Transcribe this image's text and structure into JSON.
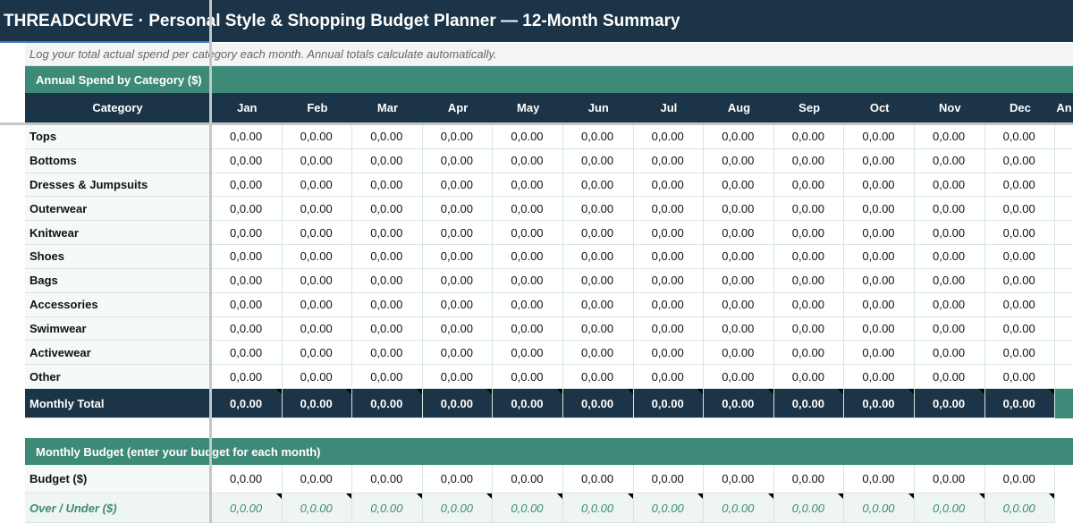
{
  "header": {
    "title": "THREADCURVE · Personal Style & Shopping Budget Planner — 12-Month Summary",
    "note": "Log your total actual spend per category each month. Annual totals calculate automatically."
  },
  "spend": {
    "title": "Annual Spend by Category ($)",
    "columns": [
      "Category",
      "Jan",
      "Feb",
      "Mar",
      "Apr",
      "May",
      "Jun",
      "Jul",
      "Aug",
      "Sep",
      "Oct",
      "Nov",
      "Dec",
      "An"
    ],
    "rows": [
      {
        "label": "Tops",
        "values": [
          "0,0.00",
          "0,0.00",
          "0,0.00",
          "0,0.00",
          "0,0.00",
          "0,0.00",
          "0,0.00",
          "0,0.00",
          "0,0.00",
          "0,0.00",
          "0,0.00",
          "0,0.00"
        ]
      },
      {
        "label": "Bottoms",
        "values": [
          "0,0.00",
          "0,0.00",
          "0,0.00",
          "0,0.00",
          "0,0.00",
          "0,0.00",
          "0,0.00",
          "0,0.00",
          "0,0.00",
          "0,0.00",
          "0,0.00",
          "0,0.00"
        ]
      },
      {
        "label": "Dresses & Jumpsuits",
        "values": [
          "0,0.00",
          "0,0.00",
          "0,0.00",
          "0,0.00",
          "0,0.00",
          "0,0.00",
          "0,0.00",
          "0,0.00",
          "0,0.00",
          "0,0.00",
          "0,0.00",
          "0,0.00"
        ]
      },
      {
        "label": "Outerwear",
        "values": [
          "0,0.00",
          "0,0.00",
          "0,0.00",
          "0,0.00",
          "0,0.00",
          "0,0.00",
          "0,0.00",
          "0,0.00",
          "0,0.00",
          "0,0.00",
          "0,0.00",
          "0,0.00"
        ]
      },
      {
        "label": "Knitwear",
        "values": [
          "0,0.00",
          "0,0.00",
          "0,0.00",
          "0,0.00",
          "0,0.00",
          "0,0.00",
          "0,0.00",
          "0,0.00",
          "0,0.00",
          "0,0.00",
          "0,0.00",
          "0,0.00"
        ]
      },
      {
        "label": "Shoes",
        "values": [
          "0,0.00",
          "0,0.00",
          "0,0.00",
          "0,0.00",
          "0,0.00",
          "0,0.00",
          "0,0.00",
          "0,0.00",
          "0,0.00",
          "0,0.00",
          "0,0.00",
          "0,0.00"
        ]
      },
      {
        "label": "Bags",
        "values": [
          "0,0.00",
          "0,0.00",
          "0,0.00",
          "0,0.00",
          "0,0.00",
          "0,0.00",
          "0,0.00",
          "0,0.00",
          "0,0.00",
          "0,0.00",
          "0,0.00",
          "0,0.00"
        ]
      },
      {
        "label": "Accessories",
        "values": [
          "0,0.00",
          "0,0.00",
          "0,0.00",
          "0,0.00",
          "0,0.00",
          "0,0.00",
          "0,0.00",
          "0,0.00",
          "0,0.00",
          "0,0.00",
          "0,0.00",
          "0,0.00"
        ]
      },
      {
        "label": "Swimwear",
        "values": [
          "0,0.00",
          "0,0.00",
          "0,0.00",
          "0,0.00",
          "0,0.00",
          "0,0.00",
          "0,0.00",
          "0,0.00",
          "0,0.00",
          "0,0.00",
          "0,0.00",
          "0,0.00"
        ]
      },
      {
        "label": "Activewear",
        "values": [
          "0,0.00",
          "0,0.00",
          "0,0.00",
          "0,0.00",
          "0,0.00",
          "0,0.00",
          "0,0.00",
          "0,0.00",
          "0,0.00",
          "0,0.00",
          "0,0.00",
          "0,0.00"
        ]
      },
      {
        "label": "Other",
        "values": [
          "0,0.00",
          "0,0.00",
          "0,0.00",
          "0,0.00",
          "0,0.00",
          "0,0.00",
          "0,0.00",
          "0,0.00",
          "0,0.00",
          "0,0.00",
          "0,0.00",
          "0,0.00"
        ]
      }
    ],
    "total": {
      "label": "Monthly Total",
      "values": [
        "0,0.00",
        "0,0.00",
        "0,0.00",
        "0,0.00",
        "0,0.00",
        "0,0.00",
        "0,0.00",
        "0,0.00",
        "0,0.00",
        "0,0.00",
        "0,0.00",
        "0,0.00"
      ]
    }
  },
  "budget": {
    "title": "Monthly Budget (enter your budget for each month)",
    "rows": [
      {
        "label": "Budget ($)",
        "values": [
          "0,0.00",
          "0,0.00",
          "0,0.00",
          "0,0.00",
          "0,0.00",
          "0,0.00",
          "0,0.00",
          "0,0.00",
          "0,0.00",
          "0,0.00",
          "0,0.00",
          "0,0.00"
        ]
      },
      {
        "label": "Over / Under ($)",
        "values": [
          "0,0.00",
          "0,0.00",
          "0,0.00",
          "0,0.00",
          "0,0.00",
          "0,0.00",
          "0,0.00",
          "0,0.00",
          "0,0.00",
          "0,0.00",
          "0,0.00",
          "0,0.00"
        ]
      }
    ]
  }
}
